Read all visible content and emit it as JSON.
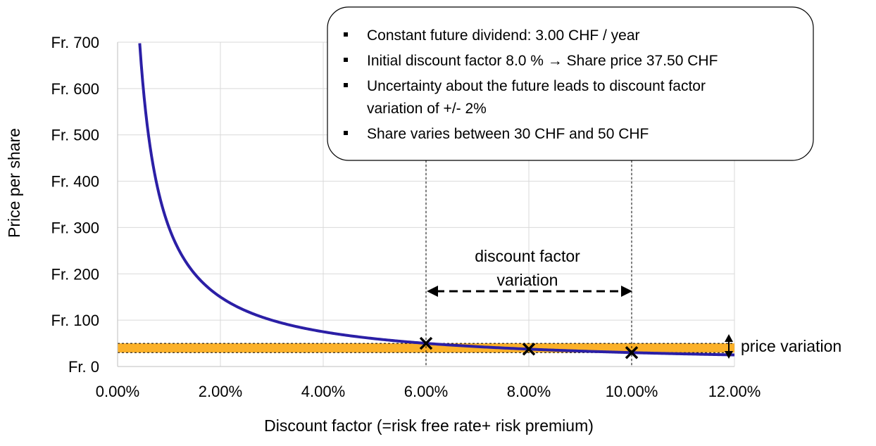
{
  "chart_data": {
    "type": "line",
    "title": "",
    "xlabel": "Discount factor (=risk free rate+ risk premium)",
    "ylabel": "Price per share",
    "xlim": [
      0,
      0.12
    ],
    "ylim": [
      0,
      700
    ],
    "x_ticks": [
      0,
      0.02,
      0.04,
      0.06,
      0.08,
      0.1,
      0.12
    ],
    "x_tick_labels": [
      "0.00%",
      "2.00%",
      "4.00%",
      "6.00%",
      "8.00%",
      "10.00%",
      "12.00%"
    ],
    "y_ticks": [
      0,
      100,
      200,
      300,
      400,
      500,
      600,
      700
    ],
    "y_tick_labels": [
      "Fr. 0",
      "Fr. 100",
      "Fr. 200",
      "Fr. 300",
      "Fr. 400",
      "Fr. 500",
      "Fr. 600",
      "Fr. 700"
    ],
    "grid": true,
    "series": [
      {
        "dividend": 3.0,
        "formula": "price = 3.00 / discount factor",
        "x_range": [
          0.0043,
          0.12
        ],
        "color": "#2b1fa6"
      }
    ],
    "markers": [
      {
        "x": 0.06,
        "y": 50.0
      },
      {
        "x": 0.08,
        "y": 37.5
      },
      {
        "x": 0.1,
        "y": 30.0
      }
    ],
    "price_band": {
      "y_min": 30,
      "y_max": 50,
      "x_range": [
        0,
        0.12
      ],
      "color": "#fbb12a"
    },
    "discount_band": {
      "x_min": 0.06,
      "x_max": 0.1
    },
    "annotations": {
      "discount_factor_variation": [
        "discount factor",
        "variation"
      ],
      "price_variation": "price variation"
    },
    "info_box": {
      "bullets": [
        [
          "Constant future dividend: 3.00 CHF / year"
        ],
        [
          "Initial discount factor 8.0 % → Share price 37.50 CHF"
        ],
        [
          "Uncertainty about the future leads to discount factor",
          "variation of +/- 2%"
        ],
        [
          "Share varies between 30 CHF and 50 CHF"
        ]
      ]
    }
  }
}
